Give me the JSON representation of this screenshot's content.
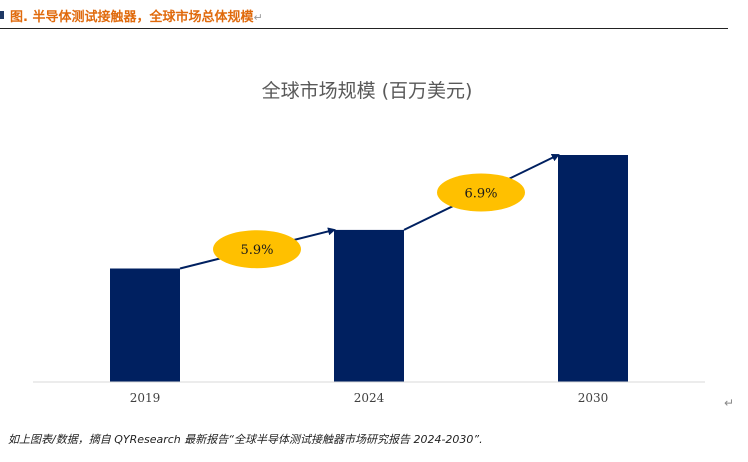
{
  "header": {
    "title": "图.  半导体测试接触器，全球市场总体规模",
    "return_mark": "↵"
  },
  "source_note": "如上图表/数据，摘自 QYResearch 最新报告“全球半导体测试接触器市场研究报告 2024-2030”.",
  "side_return_mark": "↵",
  "chart_data": {
    "type": "bar",
    "title": "全球市场规模 (百万美元)",
    "categories": [
      "2019",
      "2024",
      "2030"
    ],
    "values": [
      50,
      67,
      100
    ],
    "ylim": [
      0,
      100
    ],
    "bar_color": "#002060",
    "grid": false,
    "annotations": [
      {
        "label": "5.9%",
        "from": "2019",
        "to": "2024",
        "color": "#ffc000"
      },
      {
        "label": "6.9%",
        "from": "2024",
        "to": "2030",
        "color": "#ffc000"
      }
    ]
  }
}
